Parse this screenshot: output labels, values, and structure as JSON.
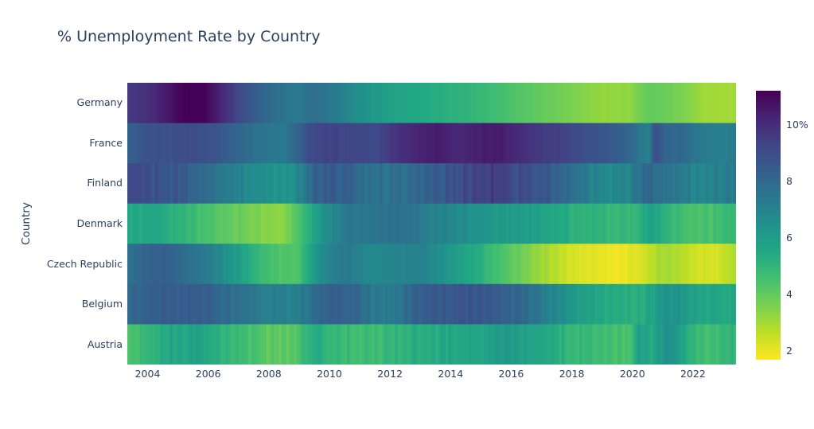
{
  "text_color": "#2a3f5f",
  "background_color": "#ffffff",
  "chart_data": {
    "type": "heatmap",
    "title": "% Unemployment Rate by Country",
    "xlabel": "",
    "ylabel": "Country",
    "unit": "%",
    "x_range": [
      2003.33,
      2023.42
    ],
    "x_ticks": [
      2004,
      2006,
      2008,
      2010,
      2012,
      2014,
      2016,
      2018,
      2020,
      2022
    ],
    "x_resolution": "monthly",
    "z_range": [
      1.7,
      11.2
    ],
    "colorscale": "Viridis reversed (high unemployment = dark purple, low = yellow)",
    "viridis_stops": [
      "#440154",
      "#482475",
      "#414487",
      "#355f8d",
      "#2a788e",
      "#21918c",
      "#22a884",
      "#44bf70",
      "#7ad151",
      "#bddf26",
      "#fde725"
    ],
    "colorbar": {
      "tick_values": [
        10,
        8,
        6,
        4,
        2
      ],
      "tick_labels": [
        "10%",
        "8",
        "6",
        "4",
        "2"
      ],
      "position": "right"
    },
    "rows": [
      {
        "country": "Germany",
        "noise": 0.05,
        "points": [
          [
            2003.33,
            9.6
          ],
          [
            2004.0,
            9.9
          ],
          [
            2004.7,
            10.6
          ],
          [
            2005.2,
            11.2
          ],
          [
            2005.9,
            11.1
          ],
          [
            2006.4,
            10.3
          ],
          [
            2007.0,
            9.1
          ],
          [
            2008.0,
            7.9
          ],
          [
            2008.9,
            7.3
          ],
          [
            2009.5,
            7.8
          ],
          [
            2010.2,
            7.3
          ],
          [
            2011.0,
            6.5
          ],
          [
            2012.0,
            5.8
          ],
          [
            2013.0,
            5.5
          ],
          [
            2014.0,
            5.2
          ],
          [
            2015.0,
            4.9
          ],
          [
            2016.0,
            4.4
          ],
          [
            2017.0,
            4.0
          ],
          [
            2018.0,
            3.6
          ],
          [
            2019.0,
            3.2
          ],
          [
            2019.9,
            3.3
          ],
          [
            2020.5,
            4.0
          ],
          [
            2021.0,
            3.9
          ],
          [
            2021.8,
            3.5
          ],
          [
            2022.3,
            3.1
          ],
          [
            2023.0,
            3.0
          ],
          [
            2023.42,
            3.1
          ]
        ]
      },
      {
        "country": "France",
        "noise": 0.08,
        "points": [
          [
            2003.33,
            8.2
          ],
          [
            2004.0,
            8.8
          ],
          [
            2004.8,
            8.9
          ],
          [
            2005.5,
            9.0
          ],
          [
            2006.2,
            8.8
          ],
          [
            2007.0,
            8.1
          ],
          [
            2008.0,
            7.4
          ],
          [
            2008.5,
            7.3
          ],
          [
            2009.4,
            9.1
          ],
          [
            2010.0,
            9.3
          ],
          [
            2010.8,
            9.2
          ],
          [
            2011.5,
            9.1
          ],
          [
            2012.2,
            9.8
          ],
          [
            2013.0,
            10.3
          ],
          [
            2013.6,
            10.5
          ],
          [
            2014.2,
            10.1
          ],
          [
            2014.9,
            10.4
          ],
          [
            2015.6,
            10.5
          ],
          [
            2016.2,
            10.1
          ],
          [
            2017.0,
            9.6
          ],
          [
            2017.6,
            9.4
          ],
          [
            2018.2,
            9.0
          ],
          [
            2019.0,
            8.7
          ],
          [
            2019.9,
            8.1
          ],
          [
            2020.3,
            7.3
          ],
          [
            2020.55,
            7.1
          ],
          [
            2020.75,
            9.0
          ],
          [
            2021.1,
            8.1
          ],
          [
            2021.6,
            8.0
          ],
          [
            2022.2,
            7.4
          ],
          [
            2022.8,
            7.1
          ],
          [
            2023.42,
            7.3
          ]
        ]
      },
      {
        "country": "Finland",
        "noise": 0.35,
        "points": [
          [
            2003.33,
            9.1
          ],
          [
            2004.0,
            8.9
          ],
          [
            2005.0,
            8.6
          ],
          [
            2006.0,
            7.8
          ],
          [
            2007.0,
            7.0
          ],
          [
            2008.0,
            6.4
          ],
          [
            2008.7,
            6.3
          ],
          [
            2009.6,
            8.4
          ],
          [
            2010.1,
            8.5
          ],
          [
            2010.6,
            8.3
          ],
          [
            2011.2,
            7.8
          ],
          [
            2012.0,
            7.6
          ],
          [
            2013.0,
            8.1
          ],
          [
            2014.0,
            8.7
          ],
          [
            2015.0,
            9.3
          ],
          [
            2015.6,
            9.5
          ],
          [
            2016.2,
            9.0
          ],
          [
            2017.0,
            8.7
          ],
          [
            2018.0,
            7.7
          ],
          [
            2019.0,
            6.7
          ],
          [
            2019.8,
            6.8
          ],
          [
            2020.4,
            7.9
          ],
          [
            2021.0,
            7.8
          ],
          [
            2021.8,
            7.1
          ],
          [
            2022.5,
            6.8
          ],
          [
            2023.0,
            7.2
          ],
          [
            2023.42,
            7.4
          ]
        ]
      },
      {
        "country": "Denmark",
        "noise": 0.2,
        "points": [
          [
            2003.33,
            5.5
          ],
          [
            2004.2,
            5.6
          ],
          [
            2005.0,
            5.1
          ],
          [
            2006.0,
            4.4
          ],
          [
            2007.0,
            3.9
          ],
          [
            2007.9,
            3.4
          ],
          [
            2008.5,
            3.3
          ],
          [
            2009.1,
            4.8
          ],
          [
            2009.9,
            6.5
          ],
          [
            2010.6,
            7.5
          ],
          [
            2011.2,
            7.4
          ],
          [
            2012.0,
            7.6
          ],
          [
            2012.6,
            7.7
          ],
          [
            2013.2,
            7.1
          ],
          [
            2014.0,
            6.9
          ],
          [
            2015.0,
            6.3
          ],
          [
            2016.0,
            6.0
          ],
          [
            2017.0,
            5.8
          ],
          [
            2018.0,
            5.2
          ],
          [
            2019.0,
            5.0
          ],
          [
            2020.1,
            4.9
          ],
          [
            2020.6,
            5.9
          ],
          [
            2021.1,
            5.2
          ],
          [
            2021.9,
            4.4
          ],
          [
            2022.6,
            4.5
          ],
          [
            2023.1,
            4.8
          ],
          [
            2023.42,
            4.9
          ]
        ]
      },
      {
        "country": "Czech Republic",
        "noise": 0.15,
        "points": [
          [
            2003.33,
            7.7
          ],
          [
            2004.1,
            8.2
          ],
          [
            2004.6,
            8.3
          ],
          [
            2005.2,
            7.9
          ],
          [
            2006.0,
            7.2
          ],
          [
            2006.8,
            6.2
          ],
          [
            2007.5,
            5.1
          ],
          [
            2008.2,
            4.4
          ],
          [
            2008.9,
            4.3
          ],
          [
            2009.7,
            6.6
          ],
          [
            2010.2,
            7.2
          ],
          [
            2010.7,
            7.3
          ],
          [
            2011.3,
            6.8
          ],
          [
            2012.0,
            6.9
          ],
          [
            2013.0,
            7.1
          ],
          [
            2014.0,
            6.2
          ],
          [
            2015.0,
            5.2
          ],
          [
            2016.0,
            4.1
          ],
          [
            2017.0,
            3.1
          ],
          [
            2018.0,
            2.3
          ],
          [
            2019.0,
            2.0
          ],
          [
            2019.6,
            1.9
          ],
          [
            2020.2,
            2.2
          ],
          [
            2020.8,
            2.9
          ],
          [
            2021.3,
            3.0
          ],
          [
            2022.0,
            2.4
          ],
          [
            2022.8,
            2.3
          ],
          [
            2023.2,
            2.7
          ],
          [
            2023.42,
            2.7
          ]
        ]
      },
      {
        "country": "Belgium",
        "noise": 0.25,
        "points": [
          [
            2003.33,
            8.0
          ],
          [
            2004.0,
            8.4
          ],
          [
            2005.0,
            8.5
          ],
          [
            2006.0,
            8.3
          ],
          [
            2007.0,
            7.6
          ],
          [
            2008.0,
            7.1
          ],
          [
            2008.8,
            7.0
          ],
          [
            2009.6,
            7.9
          ],
          [
            2010.1,
            8.3
          ],
          [
            2010.9,
            8.1
          ],
          [
            2011.6,
            7.2
          ],
          [
            2012.2,
            7.5
          ],
          [
            2013.0,
            8.4
          ],
          [
            2014.0,
            8.6
          ],
          [
            2015.0,
            8.6
          ],
          [
            2015.9,
            8.2
          ],
          [
            2016.6,
            7.8
          ],
          [
            2017.2,
            7.1
          ],
          [
            2018.0,
            6.1
          ],
          [
            2019.0,
            5.5
          ],
          [
            2019.9,
            5.2
          ],
          [
            2020.5,
            5.5
          ],
          [
            2021.0,
            6.2
          ],
          [
            2021.5,
            6.4
          ],
          [
            2022.1,
            5.7
          ],
          [
            2022.8,
            5.5
          ],
          [
            2023.42,
            5.6
          ]
        ]
      },
      {
        "country": "Austria",
        "noise": 0.28,
        "points": [
          [
            2003.33,
            4.3
          ],
          [
            2004.0,
            4.9
          ],
          [
            2005.0,
            5.6
          ],
          [
            2005.6,
            5.8
          ],
          [
            2006.2,
            5.3
          ],
          [
            2007.0,
            4.9
          ],
          [
            2008.0,
            4.1
          ],
          [
            2008.8,
            4.1
          ],
          [
            2009.5,
            5.4
          ],
          [
            2010.1,
            4.9
          ],
          [
            2011.0,
            4.6
          ],
          [
            2012.0,
            4.9
          ],
          [
            2013.0,
            5.3
          ],
          [
            2014.0,
            5.6
          ],
          [
            2015.0,
            5.7
          ],
          [
            2016.0,
            6.1
          ],
          [
            2017.0,
            5.6
          ],
          [
            2018.0,
            5.0
          ],
          [
            2019.0,
            4.6
          ],
          [
            2019.9,
            4.4
          ],
          [
            2020.25,
            6.1
          ],
          [
            2020.6,
            5.4
          ],
          [
            2021.0,
            6.3
          ],
          [
            2021.4,
            6.4
          ],
          [
            2021.9,
            5.1
          ],
          [
            2022.4,
            4.7
          ],
          [
            2022.9,
            4.9
          ],
          [
            2023.42,
            5.1
          ]
        ]
      }
    ]
  }
}
